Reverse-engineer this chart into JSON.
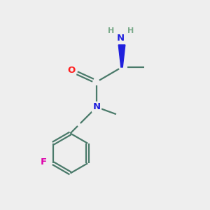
{
  "bg_color": "#eeeeee",
  "bond_color": "#4a7a6a",
  "atom_colors": {
    "O": "#ff2020",
    "N": "#2020dd",
    "F": "#dd00aa",
    "C": "#4a7a6a",
    "H": "#7aaa8a"
  },
  "bond_lw": 1.6,
  "font_size_atom": 9.5,
  "font_size_H": 8.0,
  "font_size_small": 8.5
}
